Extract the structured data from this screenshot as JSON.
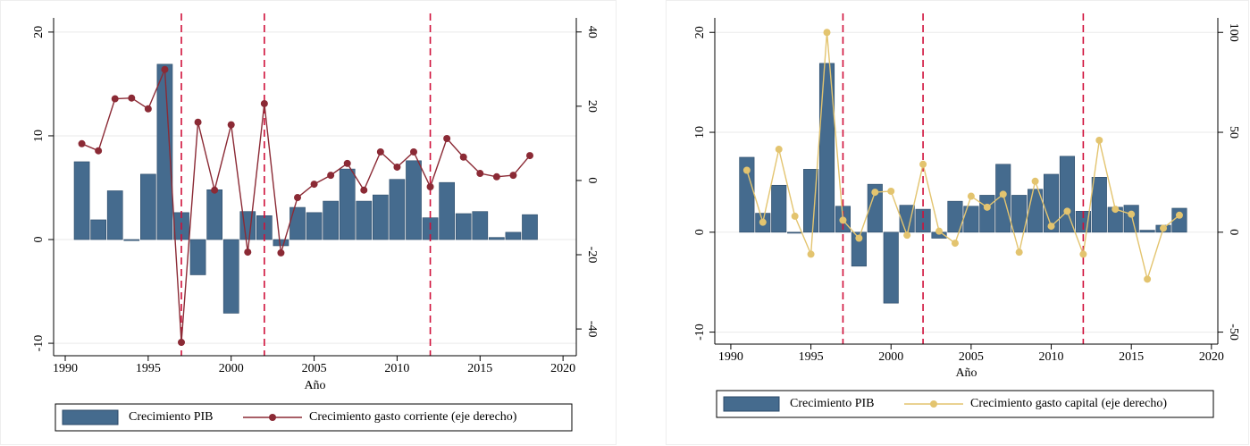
{
  "chart_data": [
    {
      "type": "bar-line",
      "xlabel": "Año",
      "x": [
        1991,
        1992,
        1993,
        1994,
        1995,
        1996,
        1997,
        1998,
        1999,
        2000,
        2001,
        2002,
        2003,
        2004,
        2005,
        2006,
        2007,
        2008,
        2009,
        2010,
        2011,
        2012,
        2013,
        2014,
        2015,
        2016,
        2017,
        2018
      ],
      "series": [
        {
          "name": "Crecimiento PIB",
          "kind": "bar",
          "color": "#456b8e",
          "values": [
            7.5,
            1.9,
            4.7,
            -0.1,
            6.3,
            16.9,
            2.6,
            -3.4,
            4.8,
            -7.1,
            2.7,
            2.3,
            -0.6,
            3.1,
            2.6,
            3.7,
            6.8,
            3.7,
            4.3,
            5.8,
            7.6,
            2.1,
            5.5,
            2.5,
            2.7,
            0.2,
            0.7,
            2.4
          ]
        },
        {
          "name": "Crecimiento gasto corriente (eje derecho)",
          "kind": "line",
          "axis": "y2",
          "color": "#8b2a35",
          "values": [
            9.9,
            8,
            22,
            22.2,
            19.3,
            29.9,
            -43.6,
            15.7,
            -2.6,
            15,
            -19.3,
            20.7,
            -19.5,
            -4.6,
            -1,
            1.4,
            4.6,
            -2.6,
            7.7,
            3.6,
            7.7,
            -1.7,
            11.3,
            6.3,
            1.9,
            1,
            1.4,
            6.7
          ]
        }
      ],
      "xlim": [
        1989.3,
        2020.8
      ],
      "xticks": [
        1990,
        1995,
        2000,
        2005,
        2010,
        2015,
        2020
      ],
      "ylim": [
        -11.2,
        21.8
      ],
      "yticks": [
        -10,
        0,
        10,
        20
      ],
      "y2lim": [
        -47.2,
        45
      ],
      "y2ticks": [
        -40,
        -20,
        0,
        20,
        40
      ],
      "vlines": [
        1997,
        2002,
        2012
      ],
      "vline_color": "#d0103a",
      "grid": true,
      "legend": "bottom"
    },
    {
      "type": "bar-line",
      "xlabel": "Año",
      "x": [
        1991,
        1992,
        1993,
        1994,
        1995,
        1996,
        1997,
        1998,
        1999,
        2000,
        2001,
        2002,
        2003,
        2004,
        2005,
        2006,
        2007,
        2008,
        2009,
        2010,
        2011,
        2012,
        2013,
        2014,
        2015,
        2016,
        2017,
        2018
      ],
      "series": [
        {
          "name": "Crecimiento PIB",
          "kind": "bar",
          "color": "#456b8e",
          "values": [
            7.5,
            1.9,
            4.7,
            -0.1,
            6.3,
            16.9,
            2.6,
            -3.4,
            4.8,
            -7.1,
            2.7,
            2.3,
            -0.6,
            3.1,
            2.6,
            3.7,
            6.8,
            3.7,
            4.3,
            5.8,
            7.6,
            2.1,
            5.5,
            2.5,
            2.7,
            0.2,
            0.7,
            2.4
          ]
        },
        {
          "name": "Crecimiento gasto capital (eje derecho)",
          "kind": "line",
          "axis": "y2",
          "color": "#e3c46f",
          "values": [
            31,
            5,
            41.5,
            8,
            -11,
            100,
            6,
            -3,
            20,
            20.5,
            -1.5,
            34,
            0.5,
            -5.5,
            18,
            12.5,
            19,
            -10,
            25.5,
            3,
            10.5,
            -11,
            46,
            11.5,
            9,
            -23.5,
            2,
            8.5
          ]
        }
      ],
      "xlim": [
        1989,
        2020.4
      ],
      "xticks": [
        1990,
        1995,
        2000,
        2005,
        2010,
        2015,
        2020
      ],
      "ylim": [
        -11.2,
        21.9
      ],
      "yticks": [
        -10,
        0,
        10,
        20
      ],
      "y2lim": [
        -56,
        109.5
      ],
      "y2ticks": [
        -50,
        0,
        50,
        100
      ],
      "vlines": [
        1997,
        2002,
        2012
      ],
      "vline_color": "#d0103a",
      "grid": true,
      "legend": "bottom"
    }
  ]
}
